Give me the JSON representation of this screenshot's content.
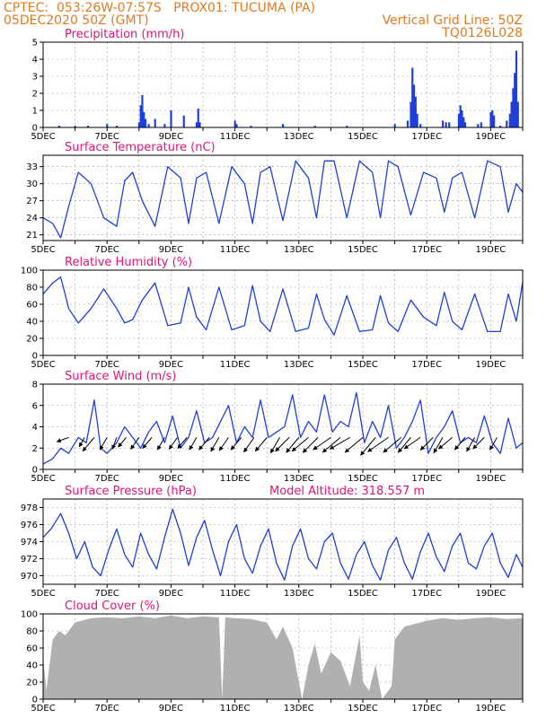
{
  "header": {
    "left_line1": "CPTEC:  053:26W-07:57S   PROX01: TUCUMA (PA)",
    "left_line2": "05DEC2020 50Z (GMT)",
    "right_line1": "Vertical Grid Line: 50Z",
    "right_line2": "TQ0126L028"
  },
  "colors": {
    "header": "#e07a1f",
    "title": "#e0147a",
    "series": "#1f3fd9",
    "cloud": "#b0b0b0",
    "grid": "#999999"
  },
  "x_axis": {
    "labels": [
      "5DEC",
      "7DEC",
      "9DEC",
      "11DEC",
      "13DEC",
      "15DEC",
      "17DEC",
      "19DEC"
    ],
    "days": [
      5,
      7,
      9,
      11,
      13,
      15,
      17,
      19
    ],
    "range": [
      5,
      20
    ]
  },
  "chart_data": [
    {
      "type": "bar",
      "title": "Precipitation (mm/h)",
      "ylim": [
        0,
        5
      ],
      "yticks": [
        0,
        1,
        2,
        3,
        4,
        5
      ],
      "x": [
        5.5,
        6.0,
        6.4,
        7.0,
        7.3,
        8.0,
        8.05,
        8.1,
        8.15,
        8.2,
        8.3,
        8.5,
        8.8,
        9.0,
        9.4,
        9.8,
        9.85,
        9.9,
        11.0,
        11.05,
        11.5,
        12.5,
        13.5,
        14.5,
        16.0,
        16.4,
        16.5,
        16.55,
        16.6,
        16.65,
        16.7,
        16.8,
        17.5,
        17.6,
        17.7,
        18.0,
        18.05,
        18.1,
        18.15,
        18.2,
        18.6,
        18.7,
        19.0,
        19.05,
        19.1,
        19.3,
        19.5,
        19.6,
        19.65,
        19.7,
        19.75,
        19.8,
        19.85
      ],
      "values": [
        0.1,
        0.1,
        0.1,
        0.2,
        0.1,
        0.3,
        1.3,
        1.9,
        0.9,
        0.5,
        0.2,
        0.5,
        0.2,
        1.0,
        0.7,
        0.3,
        1.1,
        0.3,
        0.4,
        0.2,
        0.1,
        0.2,
        0.1,
        0.1,
        0.2,
        0.4,
        1.5,
        3.5,
        2.5,
        1.8,
        0.8,
        0.2,
        0.4,
        0.3,
        0.3,
        0.8,
        1.3,
        1.0,
        0.6,
        0.3,
        0.2,
        0.3,
        0.9,
        1.0,
        0.7,
        0.1,
        0.4,
        0.8,
        1.5,
        2.3,
        3.2,
        4.5,
        1.5
      ]
    },
    {
      "type": "line",
      "title": "Surface Temperature (nC)",
      "ylim": [
        20,
        35
      ],
      "yticks": [
        21,
        24,
        27,
        30,
        33
      ],
      "ytick_labels": [
        "21",
        "24",
        "27",
        "30",
        "33"
      ],
      "x": [
        5.0,
        5.3,
        5.55,
        5.8,
        6.1,
        6.5,
        6.9,
        7.3,
        7.55,
        7.8,
        8.1,
        8.5,
        8.9,
        9.3,
        9.55,
        9.8,
        10.1,
        10.5,
        10.9,
        11.3,
        11.55,
        11.8,
        12.1,
        12.5,
        12.9,
        13.3,
        13.55,
        13.8,
        14.1,
        14.5,
        14.9,
        15.3,
        15.55,
        15.8,
        16.1,
        16.5,
        16.9,
        17.3,
        17.55,
        17.8,
        18.1,
        18.5,
        18.9,
        19.3,
        19.55,
        19.8,
        20.0
      ],
      "values": [
        24,
        23,
        20.5,
        26,
        32,
        30,
        24,
        22.5,
        30.5,
        32,
        27,
        22.5,
        33,
        31,
        23,
        31,
        32,
        23,
        33,
        30,
        23,
        32,
        33,
        23.5,
        34,
        31,
        24,
        34,
        34,
        24,
        34,
        32,
        24,
        34,
        33,
        24.5,
        32,
        31,
        25,
        31,
        32,
        24,
        34,
        33,
        25,
        30,
        28.5
      ]
    },
    {
      "type": "line",
      "title": "Relative Humidity (%)",
      "ylim": [
        0,
        100
      ],
      "yticks": [
        0,
        20,
        40,
        60,
        80,
        100
      ],
      "ytick_labels": [
        "0",
        "20",
        "40",
        "60",
        "80",
        "100"
      ],
      "x": [
        5.0,
        5.3,
        5.55,
        5.8,
        6.1,
        6.5,
        6.9,
        7.3,
        7.55,
        7.8,
        8.1,
        8.5,
        8.9,
        9.3,
        9.55,
        9.8,
        10.1,
        10.5,
        10.9,
        11.3,
        11.55,
        11.8,
        12.1,
        12.5,
        12.9,
        13.3,
        13.55,
        13.8,
        14.1,
        14.5,
        14.9,
        15.3,
        15.55,
        15.8,
        16.1,
        16.5,
        16.9,
        17.3,
        17.55,
        17.8,
        18.1,
        18.5,
        18.9,
        19.3,
        19.55,
        19.8,
        20.0
      ],
      "values": [
        72,
        85,
        92,
        55,
        38,
        55,
        78,
        55,
        38,
        42,
        65,
        85,
        35,
        38,
        80,
        45,
        30,
        80,
        30,
        35,
        82,
        40,
        28,
        78,
        28,
        32,
        72,
        42,
        24,
        70,
        28,
        30,
        70,
        38,
        28,
        65,
        45,
        35,
        74,
        40,
        30,
        72,
        28,
        28,
        72,
        40,
        86
      ]
    },
    {
      "type": "line",
      "title": "Surface Wind (m/s)",
      "ylim": [
        0,
        8
      ],
      "yticks": [
        0,
        2,
        4,
        6,
        8
      ],
      "ytick_labels": [
        "0",
        "2",
        "4",
        "6",
        "8"
      ],
      "x": [
        5.0,
        5.3,
        5.55,
        5.8,
        6.1,
        6.35,
        6.6,
        6.8,
        7.0,
        7.3,
        7.55,
        7.8,
        8.05,
        8.3,
        8.55,
        8.8,
        9.05,
        9.3,
        9.55,
        9.8,
        10.05,
        10.3,
        10.55,
        10.8,
        11.05,
        11.3,
        11.55,
        11.8,
        12.05,
        12.3,
        12.55,
        12.8,
        13.05,
        13.3,
        13.55,
        13.8,
        14.05,
        14.3,
        14.55,
        14.8,
        15.05,
        15.3,
        15.55,
        15.8,
        16.05,
        16.3,
        16.55,
        16.8,
        17.05,
        17.3,
        17.55,
        17.8,
        18.05,
        18.3,
        18.55,
        18.8,
        19.05,
        19.3,
        19.55,
        19.8,
        20.0
      ],
      "values": [
        0.5,
        1.0,
        2.0,
        1.5,
        3.0,
        2.5,
        6.5,
        2.0,
        1.5,
        2.5,
        4.0,
        3.0,
        2.0,
        3.5,
        4.5,
        2.5,
        5.0,
        2.0,
        3.0,
        5.5,
        2.5,
        3.0,
        4.5,
        6.0,
        2.5,
        4.0,
        3.0,
        6.5,
        3.0,
        3.5,
        4.0,
        7.0,
        3.0,
        4.5,
        3.5,
        7.0,
        3.5,
        4.5,
        4.0,
        7.2,
        2.5,
        4.5,
        3.0,
        6.0,
        2.0,
        3.0,
        4.5,
        6.5,
        1.5,
        3.0,
        4.0,
        5.5,
        2.5,
        3.0,
        2.5,
        5.0,
        2.5,
        1.5,
        4.8,
        2.0,
        2.5
      ]
    },
    {
      "type": "line",
      "title": "Surface Pressure (hPa)",
      "subtitle": "Model Altitude: 318.557 m",
      "ylim": [
        969,
        979
      ],
      "yticks": [
        970,
        972,
        974,
        976,
        978
      ],
      "ytick_labels": [
        "970",
        "972",
        "974",
        "976",
        "978"
      ],
      "x": [
        5.0,
        5.25,
        5.55,
        5.8,
        6.05,
        6.3,
        6.55,
        6.8,
        7.05,
        7.3,
        7.55,
        7.8,
        8.05,
        8.3,
        8.55,
        8.8,
        9.05,
        9.3,
        9.55,
        9.8,
        10.05,
        10.3,
        10.55,
        10.8,
        11.05,
        11.3,
        11.55,
        11.8,
        12.05,
        12.3,
        12.55,
        12.8,
        13.05,
        13.3,
        13.55,
        13.8,
        14.05,
        14.3,
        14.55,
        14.8,
        15.05,
        15.3,
        15.55,
        15.8,
        16.05,
        16.3,
        16.55,
        16.8,
        17.05,
        17.3,
        17.55,
        17.8,
        18.05,
        18.3,
        18.55,
        18.8,
        19.05,
        19.3,
        19.55,
        19.8,
        20.0
      ],
      "values": [
        974.5,
        975.5,
        977.3,
        975.0,
        972.0,
        974.0,
        971.0,
        970.0,
        973.0,
        975.5,
        972.5,
        971.0,
        975.0,
        972.5,
        970.8,
        974.5,
        977.8,
        975.0,
        971.2,
        974.5,
        976.5,
        973.0,
        970.0,
        974.0,
        976.0,
        972.0,
        970.3,
        973.5,
        975.5,
        971.5,
        969.5,
        973.5,
        975.5,
        972.0,
        970.8,
        974.0,
        975.0,
        971.5,
        969.6,
        972.5,
        974.0,
        971.2,
        969.5,
        973.0,
        974.5,
        971.5,
        969.6,
        972.8,
        975.0,
        972.2,
        970.5,
        973.5,
        975.0,
        971.5,
        970.8,
        973.5,
        975.0,
        971.5,
        969.8,
        972.5,
        971.0
      ]
    },
    {
      "type": "area",
      "title": "Cloud Cover (%)",
      "ylim": [
        0,
        100
      ],
      "yticks": [
        0,
        20,
        40,
        60,
        80,
        100
      ],
      "ytick_labels": [
        "0",
        "20",
        "40",
        "60",
        "80",
        "100"
      ],
      "x": [
        5.0,
        5.1,
        5.3,
        5.5,
        5.7,
        5.9,
        6.0,
        6.5,
        7.0,
        7.5,
        8.0,
        8.5,
        9.0,
        9.5,
        10.0,
        10.5,
        10.6,
        10.7,
        11.0,
        11.5,
        12.0,
        12.3,
        12.5,
        12.8,
        13.0,
        13.1,
        13.3,
        13.5,
        13.7,
        14.0,
        14.3,
        14.6,
        14.9,
        15.0,
        15.2,
        15.4,
        15.6,
        15.9,
        16.0,
        16.3,
        16.6,
        17.0,
        17.5,
        18.0,
        18.5,
        19.0,
        19.5,
        20.0
      ],
      "values": [
        50,
        10,
        70,
        80,
        75,
        85,
        90,
        95,
        96,
        95,
        97,
        95,
        98,
        95,
        97,
        96,
        0,
        96,
        95,
        94,
        90,
        70,
        85,
        60,
        20,
        0,
        40,
        65,
        30,
        55,
        45,
        15,
        75,
        20,
        10,
        40,
        0,
        15,
        70,
        85,
        88,
        92,
        95,
        93,
        95,
        96,
        94,
        95
      ]
    }
  ],
  "wind_arrows": {
    "x": [
      5.8,
      6.3,
      6.6,
      7.0,
      7.3,
      7.6,
      8.0,
      8.4,
      8.8,
      9.2,
      9.5,
      9.8,
      10.2,
      10.5,
      10.8,
      11.2,
      11.6,
      12.0,
      12.4,
      12.7,
      13.0,
      13.3,
      13.6,
      14.0,
      14.3,
      14.6,
      15.0,
      15.4,
      15.8,
      16.2,
      16.5,
      16.8,
      17.2,
      17.5,
      17.8,
      18.2,
      18.5,
      18.8,
      19.2
    ],
    "speed": [
      2,
      1.5,
      3.5,
      2.5,
      2,
      2,
      2.5,
      2.5,
      2.5,
      2.5,
      2.5,
      2.5,
      3,
      3,
      3,
      3,
      3.5,
      3.5,
      3.5,
      4,
      4,
      4.5,
      4.5,
      4.5,
      5,
      5,
      5,
      5,
      5.5,
      5,
      4,
      4,
      3.5,
      3.5,
      3.5,
      3,
      3,
      3,
      2.5
    ],
    "dir_deg": [
      200,
      240,
      230,
      240,
      250,
      230,
      235,
      230,
      240,
      235,
      230,
      240,
      230,
      240,
      235,
      230,
      235,
      230,
      240,
      225,
      230,
      220,
      225,
      215,
      220,
      210,
      220,
      230,
      215,
      220,
      230,
      215,
      225,
      240,
      220,
      230,
      240,
      225,
      240
    ]
  }
}
